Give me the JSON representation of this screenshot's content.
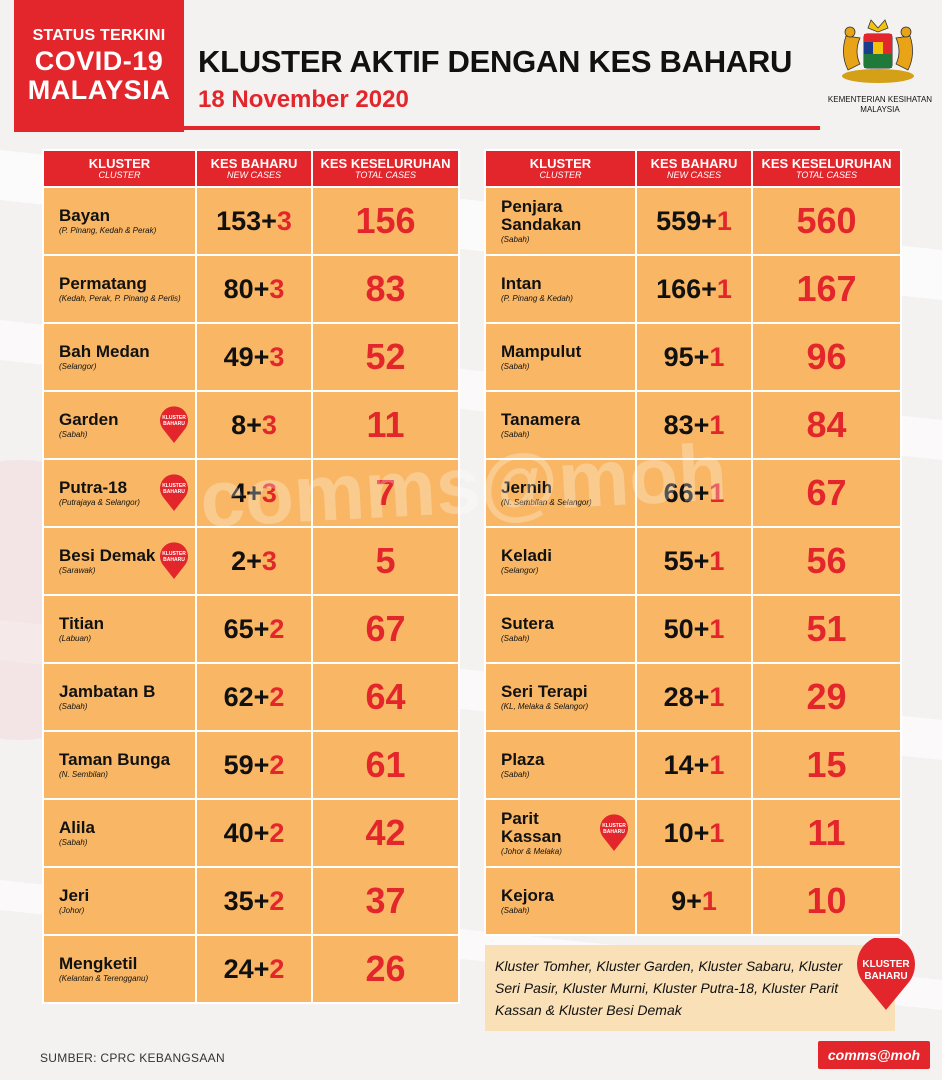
{
  "brand": {
    "line1": "STATUS TERKINI",
    "line2": "COVID-19",
    "line3": "MALAYSIA"
  },
  "header": {
    "title": "KLUSTER AKTIF DENGAN KES BAHARU",
    "date": "18 November 2020"
  },
  "ministry": "KEMENTERIAN KESIHATAN MALAYSIA",
  "columns": {
    "cluster": "KLUSTER",
    "cluster_en": "CLUSTER",
    "new_cases": "KES BAHARU",
    "new_cases_en": "NEW CASES",
    "total": "KES KESELURUHAN",
    "total_en": "TOTAL CASES"
  },
  "badge_text": "KLUSTER BAHARU",
  "left_clusters": [
    {
      "name": "Bayan",
      "location": "(P. Pinang, Kedah & Perak)",
      "prev": "153+",
      "inc": "3",
      "total": "156",
      "badge": false
    },
    {
      "name": "Permatang",
      "location": "(Kedah, Perak, P. Pinang & Perlis)",
      "prev": "80+",
      "inc": "3",
      "total": "83",
      "badge": false
    },
    {
      "name": "Bah Medan",
      "location": "(Selangor)",
      "prev": "49+",
      "inc": "3",
      "total": "52",
      "badge": false
    },
    {
      "name": "Garden",
      "location": "(Sabah)",
      "prev": "8+",
      "inc": "3",
      "total": "11",
      "badge": true
    },
    {
      "name": "Putra-18",
      "location": "(Putrajaya & Selangor)",
      "prev": "4+",
      "inc": "3",
      "total": "7",
      "badge": true
    },
    {
      "name": "Besi Demak",
      "location": "(Sarawak)",
      "prev": "2+",
      "inc": "3",
      "total": "5",
      "badge": true
    },
    {
      "name": "Titian",
      "location": "(Labuan)",
      "prev": "65+",
      "inc": "2",
      "total": "67",
      "badge": false
    },
    {
      "name": "Jambatan B",
      "location": "(Sabah)",
      "prev": "62+",
      "inc": "2",
      "total": "64",
      "badge": false
    },
    {
      "name": "Taman Bunga",
      "location": "(N. Sembilan)",
      "prev": "59+",
      "inc": "2",
      "total": "61",
      "badge": false
    },
    {
      "name": "Alila",
      "location": "(Sabah)",
      "prev": "40+",
      "inc": "2",
      "total": "42",
      "badge": false
    },
    {
      "name": "Jeri",
      "location": "(Johor)",
      "prev": "35+",
      "inc": "2",
      "total": "37",
      "badge": false
    },
    {
      "name": "Mengketil",
      "location": "(Kelantan & Terengganu)",
      "prev": "24+",
      "inc": "2",
      "total": "26",
      "badge": false
    }
  ],
  "right_clusters": [
    {
      "name": "Penjara Sandakan",
      "location": "(Sabah)",
      "prev": "559+",
      "inc": "1",
      "total": "560",
      "badge": false
    },
    {
      "name": "Intan",
      "location": "(P. Pinang & Kedah)",
      "prev": "166+",
      "inc": "1",
      "total": "167",
      "badge": false
    },
    {
      "name": "Mampulut",
      "location": "(Sabah)",
      "prev": "95+",
      "inc": "1",
      "total": "96",
      "badge": false
    },
    {
      "name": "Tanamera",
      "location": "(Sabah)",
      "prev": "83+",
      "inc": "1",
      "total": "84",
      "badge": false
    },
    {
      "name": "Jernih",
      "location": "(N. Sembilan & Selangor)",
      "prev": "66+",
      "inc": "1",
      "total": "67",
      "badge": false
    },
    {
      "name": "Keladi",
      "location": "(Selangor)",
      "prev": "55+",
      "inc": "1",
      "total": "56",
      "badge": false
    },
    {
      "name": "Sutera",
      "location": "(Sabah)",
      "prev": "50+",
      "inc": "1",
      "total": "51",
      "badge": false
    },
    {
      "name": "Seri Terapi",
      "location": "(KL, Melaka & Selangor)",
      "prev": "28+",
      "inc": "1",
      "total": "29",
      "badge": false
    },
    {
      "name": "Plaza",
      "location": "(Sabah)",
      "prev": "14+",
      "inc": "1",
      "total": "15",
      "badge": false
    },
    {
      "name": "Parit Kassan",
      "location": "(Johor & Melaka)",
      "prev": "10+",
      "inc": "1",
      "total": "11",
      "badge": true
    },
    {
      "name": "Kejora",
      "location": "(Sabah)",
      "prev": "9+",
      "inc": "1",
      "total": "10",
      "badge": false
    }
  ],
  "footnote": "Kluster Tomher, Kluster Garden, Kluster Sabaru, Kluster Seri Pasir, Kluster Murni, Kluster Putra-18, Kluster Parit Kassan & Kluster Besi Demak",
  "footnote_badge": {
    "line1": "KLUSTER",
    "line2": "BAHARU"
  },
  "source": "SUMBER: CPRC KEBANGSAAN",
  "comms": "comms@moh",
  "watermark": "comms@moh",
  "colors": {
    "red": "#e3262c",
    "cell": "#f9b765",
    "footnote_bg": "#f9e0b6"
  },
  "icons": {
    "crest": "malaysia-coat-of-arms-icon",
    "badge": "map-pin-icon"
  }
}
